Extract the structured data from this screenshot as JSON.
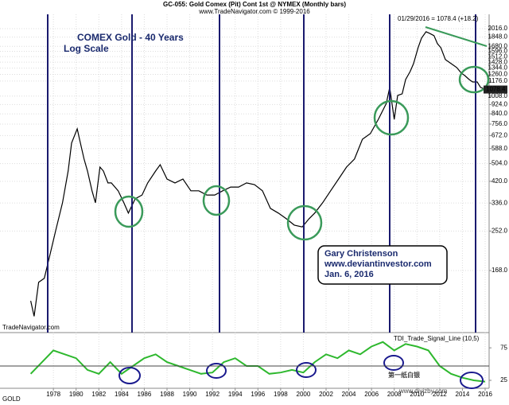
{
  "chart_data": [
    {
      "type": "line",
      "title": "GC-055:  Gold Comex (Pit) Cont 1st @ NYMEX  (Monthly bars)",
      "subtitle": "www.TradeNavigator.com © 1999-2016",
      "annotations": [
        "COMEX Gold - 40 Years",
        "Log Scale",
        "Gary Christenson",
        "www.deviantinvestor.com",
        "Jan. 6, 2016",
        "01/29/2016 = 1078.4 (+18.2)",
        "TradeNavigator.com",
        "第一纸白银",
        "www.diyizby.com"
      ],
      "log_scale": true,
      "grid": true,
      "x": [
        1976.0,
        1976.3,
        1976.7,
        1977.2,
        1977.7,
        1978.2,
        1978.8,
        1979.3,
        1979.6,
        1980.1,
        1980.3,
        1980.7,
        1981.0,
        1981.4,
        1981.7,
        1982.1,
        1982.4,
        1982.8,
        1983.1,
        1983.7,
        1984.2,
        1984.6,
        1985.2,
        1985.8,
        1986.3,
        1987.0,
        1987.4,
        1988.0,
        1988.7,
        1989.4,
        1990.1,
        1990.8,
        1991.5,
        1992.2,
        1992.9,
        1993.6,
        1994.3,
        1995.0,
        1995.7,
        1996.4,
        1997.1,
        1997.8,
        1998.5,
        1999.2,
        1999.9,
        2000.5,
        2001.0,
        2001.7,
        2002.4,
        2003.1,
        2003.8,
        2004.5,
        2005.2,
        2005.9,
        2006.6,
        2007.3,
        2007.6,
        2008.0,
        2008.3,
        2008.7,
        2009.0,
        2009.4,
        2009.7,
        2010.1,
        2010.4,
        2010.8,
        2011.1,
        2011.5,
        2011.8,
        2012.1,
        2012.5,
        2012.8,
        2013.2,
        2013.5,
        2013.9,
        2014.2,
        2014.6,
        2014.9,
        2015.3,
        2015.6,
        2016.1
      ],
      "series": [
        {
          "name": "GOLD",
          "color": "#000000",
          "values": [
            123,
            105,
            149,
            155,
            198,
            253,
            337,
            467,
            622,
            720,
            647,
            528,
            467,
            381,
            337,
            486,
            467,
            413,
            413,
            381,
            337,
            303,
            351,
            365,
            413,
            467,
            498,
            430,
            413,
            430,
            381,
            381,
            365,
            365,
            381,
            396,
            396,
            413,
            406,
            381,
            318,
            303,
            286,
            268,
            263,
            286,
            303,
            337,
            381,
            430,
            486,
            528,
            647,
            686,
            794,
            935,
            1102,
            794,
            1015,
            1032,
            1195,
            1297,
            1408,
            1658,
            1829,
            1952,
            1922,
            1875,
            1727,
            1658,
            1467,
            1431,
            1385,
            1351,
            1277,
            1245,
            1195,
            1166,
            1166,
            1102,
            1078.4
          ]
        }
      ],
      "xlim": [
        1973.3,
        2016.35
      ],
      "xticks": [
        1978,
        1980,
        1982,
        1984,
        1986,
        1988,
        1990,
        1992,
        1994,
        1996,
        1998,
        2000,
        2002,
        2004,
        2006,
        2008,
        2010,
        2012,
        2014,
        2016
      ],
      "ylim": [
        91,
        2335
      ],
      "yticks": [
        {
          "value": 168,
          "label": "168.0"
        },
        {
          "value": 252,
          "label": "252.0"
        },
        {
          "value": 336,
          "label": "336.0"
        },
        {
          "value": 420,
          "label": "420.0"
        },
        {
          "value": 504,
          "label": "504.0"
        },
        {
          "value": 588,
          "label": "588.0"
        },
        {
          "value": 672,
          "label": "672.0"
        },
        {
          "value": 756,
          "label": "756.0"
        },
        {
          "value": 840,
          "label": "840.0"
        },
        {
          "value": 924,
          "label": "924.0"
        },
        {
          "value": 1008,
          "label": "1008.0"
        },
        {
          "value": 1176,
          "label": "1176.0"
        },
        {
          "value": 1260,
          "label": "1260.0"
        },
        {
          "value": 1344,
          "label": "1344.0"
        },
        {
          "value": 1428,
          "label": "1428.0"
        },
        {
          "value": 1512,
          "label": "1512.0"
        },
        {
          "value": 1596,
          "label": "1596.0"
        },
        {
          "value": 1680,
          "label": "1680.0"
        },
        {
          "value": 1848,
          "label": "1848.0"
        },
        {
          "value": 2016,
          "label": "2016.0"
        }
      ]
    },
    {
      "type": "line",
      "title": "TDI_Trade_Signal_Line (10,5)",
      "x": [
        1976,
        1977,
        1978,
        1979,
        1980,
        1981,
        1982,
        1983,
        1984,
        1985,
        1986,
        1987,
        1988,
        1989,
        1990,
        1991,
        1992,
        1993,
        1994,
        1995,
        1996,
        1997,
        1998,
        1999,
        2000,
        2001,
        2002,
        2003,
        2004,
        2005,
        2006,
        2007,
        2008,
        2009,
        2010,
        2011,
        2012,
        2013,
        2014,
        2015,
        2016
      ],
      "series": [
        {
          "color": "#2eb82e",
          "values": [
            35,
            53,
            71,
            65,
            59,
            41,
            35,
            53,
            35,
            47,
            59,
            65,
            53,
            47,
            41,
            35,
            37,
            53,
            59,
            47,
            47,
            35,
            37,
            41,
            37,
            53,
            65,
            59,
            71,
            65,
            77,
            84,
            71,
            81,
            77,
            71,
            47,
            35,
            29,
            25,
            23
          ]
        }
      ],
      "xlim": [
        1973.3,
        2016.35
      ],
      "ylim": [
        14,
        96
      ],
      "yticks": [
        25,
        75
      ]
    }
  ]
}
